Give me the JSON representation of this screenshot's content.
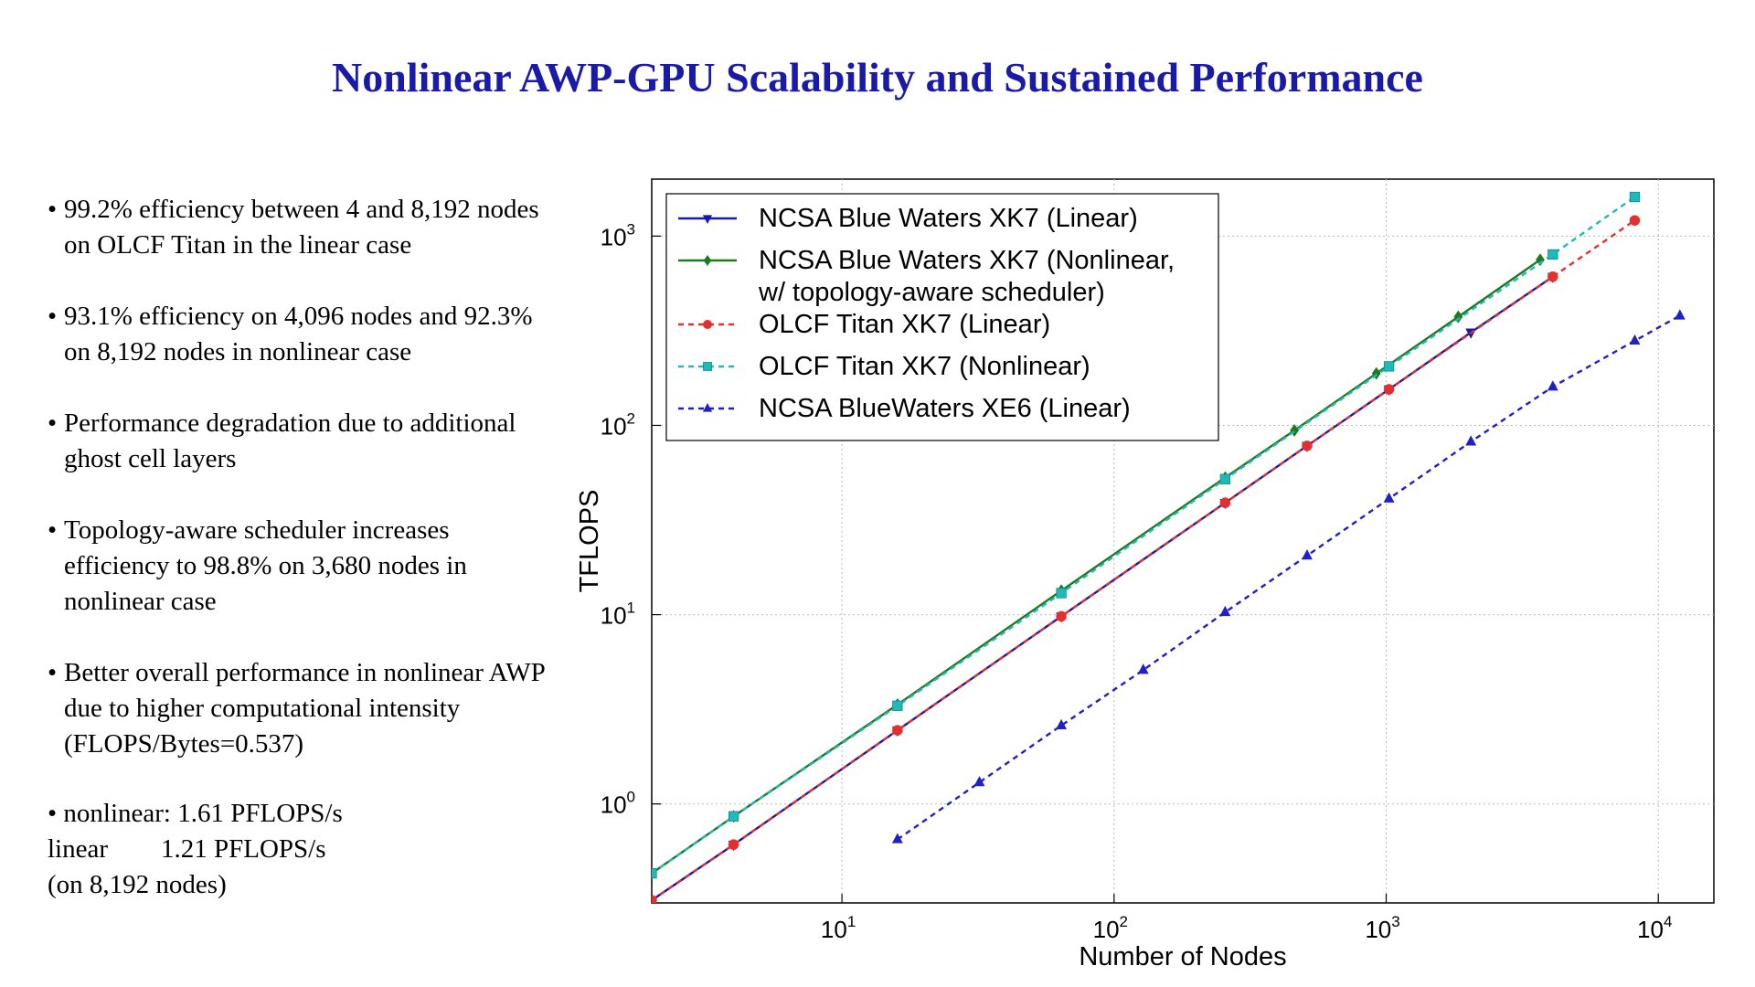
{
  "title": "Nonlinear AWP-GPU Scalability and Sustained Performance",
  "bullets": [
    "99.2% efficiency between 4 and 8,192 nodes on OLCF Titan in the linear case",
    "93.1% efficiency on 4,096 nodes and 92.3% on 8,192 nodes in nonlinear case",
    "Performance degradation due to additional ghost cell layers",
    "Topology-aware scheduler increases efficiency to 98.8% on 3,680 nodes in nonlinear case",
    "Better overall performance in nonlinear AWP due to higher computational intensity (FLOPS/Bytes=0.537)"
  ],
  "summary": {
    "line1": "nonlinear: 1.61 PFLOPS/s",
    "line2": "linear        1.21 PFLOPS/s",
    "line3": "(on 8,192 nodes)"
  },
  "colors": {
    "title": "#1a1aa8",
    "bw_xk7_linear": "#1a1aa8",
    "bw_xk7_nonlinear": "#1f7a1f",
    "titan_linear": "#e03030",
    "titan_nonlinear": "#20b8b8",
    "bw_xe6_linear": "#2020c8"
  },
  "chart_data": {
    "type": "line",
    "title": "",
    "xlabel": "Number of Nodes",
    "ylabel": "TFLOPS",
    "xscale": "log",
    "yscale": "log",
    "xlim": [
      2,
      16000
    ],
    "ylim": [
      0.3,
      2000
    ],
    "grid": true,
    "legend_position": "top-left",
    "x_ticks": [
      {
        "value": 10,
        "base": "10",
        "exp": "1"
      },
      {
        "value": 100,
        "base": "10",
        "exp": "2"
      },
      {
        "value": 1000,
        "base": "10",
        "exp": "3"
      },
      {
        "value": 10000,
        "base": "10",
        "exp": "4"
      }
    ],
    "y_ticks": [
      {
        "value": 1,
        "base": "10",
        "exp": "0"
      },
      {
        "value": 10,
        "base": "10",
        "exp": "1"
      },
      {
        "value": 100,
        "base": "10",
        "exp": "2"
      },
      {
        "value": 1000,
        "base": "10",
        "exp": "3"
      }
    ],
    "series": [
      {
        "name": "NCSA Blue Waters XK7 (Linear)",
        "key": "bw_xk7_linear",
        "marker": "tri-down",
        "dash": "solid",
        "x": [
          2,
          4,
          16,
          64,
          256,
          512,
          1024,
          2048,
          4096
        ],
        "y": [
          0.31,
          0.61,
          2.45,
          9.8,
          39,
          78,
          155,
          310,
          610
        ]
      },
      {
        "name": "NCSA Blue Waters XK7 (Nonlinear, w/ topology-aware scheduler)",
        "key": "bw_xk7_nonlinear",
        "marker": "diamond",
        "dash": "solid",
        "x": [
          2,
          4,
          16,
          64,
          256,
          460,
          920,
          1840,
          3680
        ],
        "y": [
          0.43,
          0.86,
          3.35,
          13.4,
          53,
          94,
          188,
          375,
          750
        ]
      },
      {
        "name": "OLCF Titan XK7 (Linear)",
        "key": "titan_linear",
        "marker": "circle",
        "dash": "6,5",
        "x": [
          2,
          4,
          16,
          64,
          256,
          512,
          1024,
          4096,
          8192
        ],
        "y": [
          0.31,
          0.61,
          2.45,
          9.8,
          39,
          78,
          155,
          610,
          1210
        ]
      },
      {
        "name": "OLCF Titan XK7 (Nonlinear)",
        "key": "titan_nonlinear",
        "marker": "square",
        "dash": "6,5",
        "x": [
          2,
          4,
          16,
          64,
          256,
          1024,
          4096,
          8192
        ],
        "y": [
          0.43,
          0.86,
          3.3,
          13,
          52,
          205,
          800,
          1610
        ]
      },
      {
        "name": "NCSA BlueWaters XE6 (Linear)",
        "key": "bw_xe6_linear",
        "marker": "tri-up",
        "dash": "6,5",
        "x": [
          16,
          32,
          64,
          128,
          256,
          512,
          1024,
          2048,
          4096,
          8192,
          12000
        ],
        "y": [
          0.65,
          1.3,
          2.6,
          5.1,
          10.3,
          20.5,
          41,
          82,
          160,
          280,
          380
        ]
      }
    ],
    "legend_entries": [
      {
        "line1": "NCSA Blue Waters XK7 (Linear)",
        "line2": ""
      },
      {
        "line1": "NCSA Blue Waters XK7 (Nonlinear,",
        "line2": "w/ topology-aware scheduler)"
      },
      {
        "line1": "OLCF Titan XK7 (Linear)",
        "line2": ""
      },
      {
        "line1": "OLCF Titan XK7 (Nonlinear)",
        "line2": ""
      },
      {
        "line1": "NCSA BlueWaters XE6 (Linear)",
        "line2": ""
      }
    ]
  }
}
